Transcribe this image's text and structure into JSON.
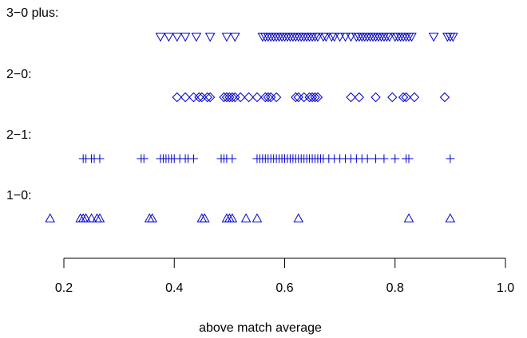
{
  "chart_data": {
    "type": "stripchart",
    "xlabel": "above match average",
    "xlim": [
      0.2,
      1.0
    ],
    "x_ticks": [
      0.2,
      0.4,
      0.6,
      0.8,
      1.0
    ],
    "x_tick_labels": [
      "0.2",
      "0.4",
      "0.6",
      "0.8",
      "1.0"
    ],
    "grid": false,
    "color": "#0000cc",
    "series": [
      {
        "name": "3−0 plus:",
        "marker": "triangle-down",
        "values": [
          0.375,
          0.39,
          0.405,
          0.42,
          0.44,
          0.465,
          0.495,
          0.51,
          0.56,
          0.565,
          0.57,
          0.575,
          0.58,
          0.585,
          0.59,
          0.595,
          0.6,
          0.605,
          0.61,
          0.615,
          0.62,
          0.625,
          0.63,
          0.635,
          0.64,
          0.645,
          0.65,
          0.655,
          0.66,
          0.67,
          0.675,
          0.685,
          0.69,
          0.7,
          0.71,
          0.72,
          0.73,
          0.735,
          0.74,
          0.745,
          0.75,
          0.755,
          0.76,
          0.765,
          0.77,
          0.775,
          0.78,
          0.785,
          0.79,
          0.8,
          0.805,
          0.81,
          0.815,
          0.82,
          0.825,
          0.83,
          0.87,
          0.895,
          0.9,
          0.905
        ]
      },
      {
        "name": "2−0:",
        "marker": "diamond",
        "values": [
          0.405,
          0.42,
          0.435,
          0.445,
          0.45,
          0.46,
          0.465,
          0.49,
          0.495,
          0.5,
          0.505,
          0.51,
          0.52,
          0.535,
          0.55,
          0.565,
          0.57,
          0.575,
          0.585,
          0.62,
          0.625,
          0.635,
          0.645,
          0.65,
          0.655,
          0.66,
          0.72,
          0.735,
          0.765,
          0.795,
          0.815,
          0.82,
          0.835,
          0.89
        ]
      },
      {
        "name": "2−1:",
        "marker": "plus",
        "values": [
          0.235,
          0.24,
          0.25,
          0.255,
          0.265,
          0.34,
          0.345,
          0.375,
          0.38,
          0.385,
          0.39,
          0.395,
          0.4,
          0.41,
          0.42,
          0.425,
          0.435,
          0.485,
          0.49,
          0.495,
          0.505,
          0.55,
          0.555,
          0.56,
          0.565,
          0.57,
          0.575,
          0.58,
          0.585,
          0.59,
          0.595,
          0.6,
          0.605,
          0.61,
          0.615,
          0.62,
          0.625,
          0.63,
          0.635,
          0.64,
          0.645,
          0.65,
          0.655,
          0.66,
          0.665,
          0.67,
          0.68,
          0.69,
          0.7,
          0.71,
          0.72,
          0.73,
          0.74,
          0.75,
          0.765,
          0.78,
          0.8,
          0.82,
          0.825,
          0.9
        ]
      },
      {
        "name": "1−0:",
        "marker": "triangle-up",
        "values": [
          0.175,
          0.23,
          0.235,
          0.24,
          0.25,
          0.26,
          0.265,
          0.355,
          0.36,
          0.45,
          0.455,
          0.495,
          0.5,
          0.505,
          0.53,
          0.55,
          0.625,
          0.825,
          0.9
        ]
      }
    ]
  }
}
